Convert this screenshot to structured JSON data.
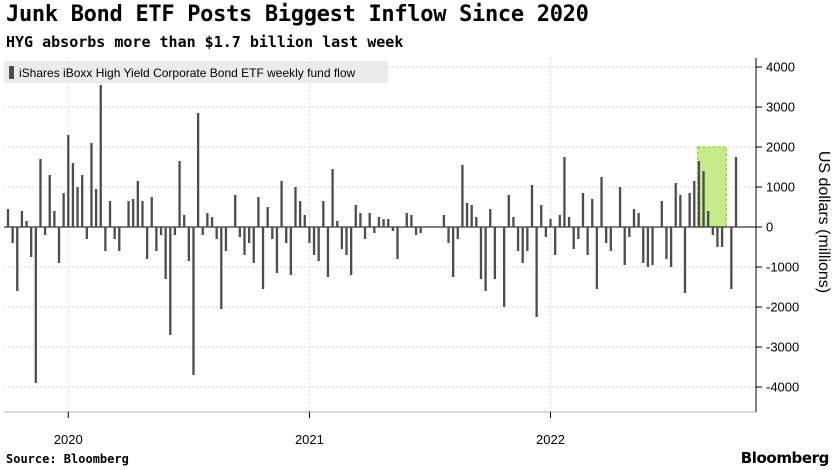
{
  "title": "Junk Bond ETF Posts Biggest Inflow Since 2020",
  "subtitle": "HYG absorbs more than $1.7 billion last week",
  "source": "Source: Bloomberg",
  "brand": "Bloomberg",
  "colors": {
    "bar": "#4d4d4d",
    "highlight_fill": "#c5ec8a",
    "highlight_stroke": "#8fcf2a",
    "grid": "#bdbdbd"
  },
  "chart_data": {
    "type": "bar",
    "legend": {
      "label": "iShares iBoxx High Yield Corporate Bond ETF weekly fund flow",
      "position": "top-left"
    },
    "ylabel": "US dollars (millions)",
    "ylim": [
      -4600,
      4200
    ],
    "yticks": [
      4000,
      3000,
      2000,
      1000,
      0,
      -1000,
      -2000,
      -3000,
      -4000
    ],
    "xticks": [
      {
        "label": "2020",
        "week_index": 13
      },
      {
        "label": "2021",
        "week_index": 65
      },
      {
        "label": "2022",
        "week_index": 117
      }
    ],
    "highlight_week_range": [
      149,
      154
    ],
    "values": [
      450,
      -400,
      -1600,
      400,
      150,
      -750,
      -3900,
      1700,
      -200,
      1300,
      400,
      -900,
      850,
      2300,
      1600,
      1000,
      1300,
      -300,
      2100,
      950,
      3550,
      -600,
      650,
      -300,
      -600,
      0,
      650,
      700,
      1150,
      650,
      -800,
      750,
      -600,
      -200,
      -1300,
      -2700,
      -200,
      1650,
      300,
      -850,
      -3700,
      2850,
      -200,
      350,
      250,
      -300,
      -2050,
      -600,
      0,
      800,
      -250,
      -700,
      -400,
      -900,
      750,
      -1550,
      500,
      -300,
      -1150,
      1150,
      -400,
      -1200,
      1000,
      650,
      300,
      -400,
      -700,
      -850,
      650,
      -1250,
      1450,
      150,
      -550,
      -700,
      -1200,
      550,
      350,
      -300,
      350,
      -150,
      250,
      200,
      200,
      -100,
      -800,
      0,
      350,
      300,
      -200,
      -150,
      0,
      0,
      0,
      0,
      300,
      -400,
      -1250,
      -300,
      1550,
      600,
      550,
      250,
      -1300,
      -1600,
      450,
      -1300,
      0,
      -2000,
      800,
      250,
      -600,
      -900,
      -600,
      1050,
      -2250,
      550,
      -250,
      200,
      -700,
      300,
      1750,
      250,
      -550,
      -300,
      850,
      -700,
      700,
      -1550,
      1250,
      -400,
      -600,
      0,
      1000,
      -950,
      -250,
      450,
      350,
      -900,
      -1000,
      -950,
      0,
      650,
      -800,
      -1000,
      1100,
      800,
      -1650,
      850,
      1150,
      1650,
      1400,
      400,
      -200,
      -500,
      -500,
      0,
      -1550,
      1750
    ]
  }
}
